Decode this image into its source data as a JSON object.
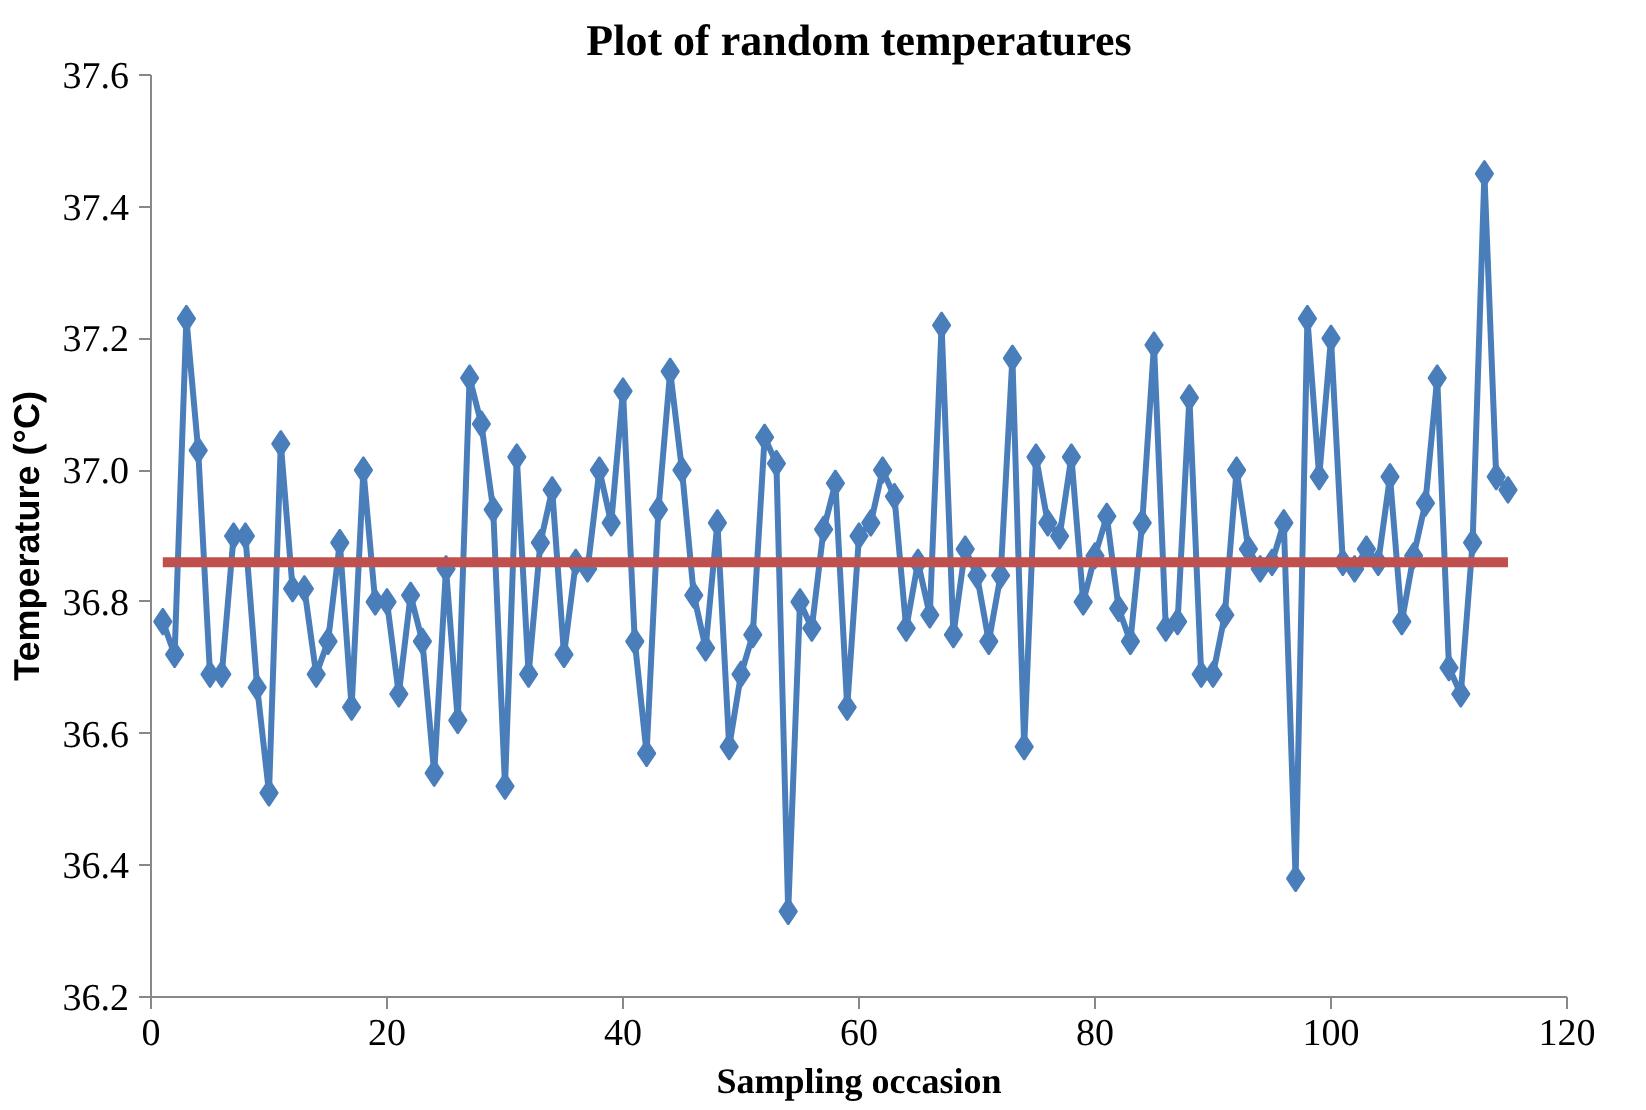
{
  "chart_data": {
    "type": "line",
    "title": "Plot of random temperatures",
    "xlabel": "Sampling occasion",
    "ylabel": "Temperature (°C)",
    "xlim": [
      0,
      120
    ],
    "xticks": [
      0,
      20,
      40,
      60,
      80,
      100,
      120
    ],
    "ylim": [
      36.2,
      37.6
    ],
    "yticks": [
      36.2,
      36.4,
      36.6,
      36.8,
      {
        "value": 37.0,
        "label": "37.0"
      },
      37.2,
      37.4,
      37.6
    ],
    "grid": false,
    "marker": "diamond",
    "line_style": "solid",
    "series": [
      {
        "color": "#4a7ebb",
        "x": [
          1,
          2,
          3,
          4,
          5,
          6,
          7,
          8,
          9,
          10,
          11,
          12,
          13,
          14,
          15,
          16,
          17,
          18,
          19,
          20,
          21,
          22,
          23,
          24,
          25,
          26,
          27,
          28,
          29,
          30,
          31,
          32,
          33,
          34,
          35,
          36,
          37,
          38,
          39,
          40,
          41,
          42,
          43,
          44,
          45,
          46,
          47,
          48,
          49,
          50,
          51,
          52,
          53,
          54,
          55,
          56,
          57,
          58,
          59,
          60,
          61,
          62,
          63,
          64,
          65,
          66,
          67,
          68,
          69,
          70,
          71,
          72,
          73,
          74,
          75,
          76,
          77,
          78,
          79,
          80,
          81,
          82,
          83,
          84,
          85,
          86,
          87,
          88,
          89,
          90,
          91,
          92,
          93,
          94,
          95,
          96,
          97,
          98,
          99,
          100,
          101,
          102,
          103,
          104,
          105,
          106,
          107,
          108,
          109,
          110,
          111,
          112,
          113,
          114,
          115
        ],
        "values": [
          36.77,
          36.72,
          37.23,
          37.03,
          36.69,
          36.69,
          36.9,
          36.9,
          36.67,
          36.51,
          37.04,
          36.82,
          36.82,
          36.69,
          36.74,
          36.89,
          36.64,
          37.0,
          36.8,
          36.8,
          36.66,
          36.81,
          36.74,
          36.54,
          36.85,
          36.62,
          37.14,
          37.07,
          36.94,
          36.52,
          37.02,
          36.69,
          36.89,
          36.97,
          36.72,
          36.86,
          36.85,
          37.0,
          36.92,
          37.12,
          36.74,
          36.57,
          36.94,
          37.15,
          37.0,
          36.81,
          36.73,
          36.92,
          36.58,
          36.69,
          36.75,
          37.05,
          37.01,
          36.33,
          36.8,
          36.76,
          36.91,
          36.98,
          36.64,
          36.9,
          36.92,
          37.0,
          36.96,
          36.76,
          36.86,
          36.78,
          37.22,
          36.75,
          36.88,
          36.84,
          36.74,
          36.84,
          37.17,
          36.58,
          37.02,
          36.92,
          36.9,
          37.02,
          36.8,
          36.87,
          36.93,
          36.79,
          36.74,
          36.92,
          37.19,
          36.76,
          36.77,
          37.11,
          36.69,
          36.69,
          36.78,
          37.0,
          36.88,
          36.85,
          36.86,
          36.92,
          36.38,
          37.23,
          36.99,
          37.2,
          36.86,
          36.85,
          36.88,
          36.86,
          36.99,
          36.77,
          36.87,
          36.95,
          37.14,
          36.7,
          36.66,
          36.89,
          37.45,
          36.99,
          36.97
        ]
      },
      {
        "color": "#c0504d",
        "marker": "none",
        "x": [
          1,
          115
        ],
        "values": [
          36.86,
          36.86
        ]
      }
    ]
  }
}
